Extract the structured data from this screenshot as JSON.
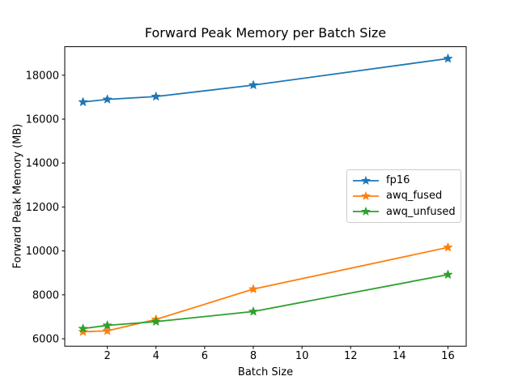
{
  "figure": {
    "background": "#ffffff"
  },
  "chart_data": {
    "type": "line",
    "title": "Forward Peak Memory per Batch Size",
    "xlabel": "Batch Size",
    "ylabel": "Forward Peak Memory (MB)",
    "x": [
      1,
      2,
      4,
      8,
      16
    ],
    "series": [
      {
        "name": "fp16",
        "color": "#1f77b4",
        "values": [
          16780,
          16900,
          17030,
          17550,
          18760
        ]
      },
      {
        "name": "awq_fused",
        "color": "#ff7f0e",
        "values": [
          6320,
          6360,
          6880,
          8260,
          10160
        ]
      },
      {
        "name": "awq_unfused",
        "color": "#2ca02c",
        "values": [
          6460,
          6610,
          6780,
          7240,
          8920
        ]
      }
    ],
    "marker": "star",
    "xticks": [
      2,
      4,
      6,
      8,
      10,
      12,
      14,
      16
    ],
    "yticks": [
      6000,
      8000,
      10000,
      12000,
      14000,
      16000,
      18000
    ],
    "xlim": [
      0.25,
      16.75
    ],
    "ylim": [
      5660,
      19300
    ],
    "grid": false,
    "legend_position": "center-right",
    "axis_color": "#000000",
    "tick_label_color": "#000000"
  }
}
